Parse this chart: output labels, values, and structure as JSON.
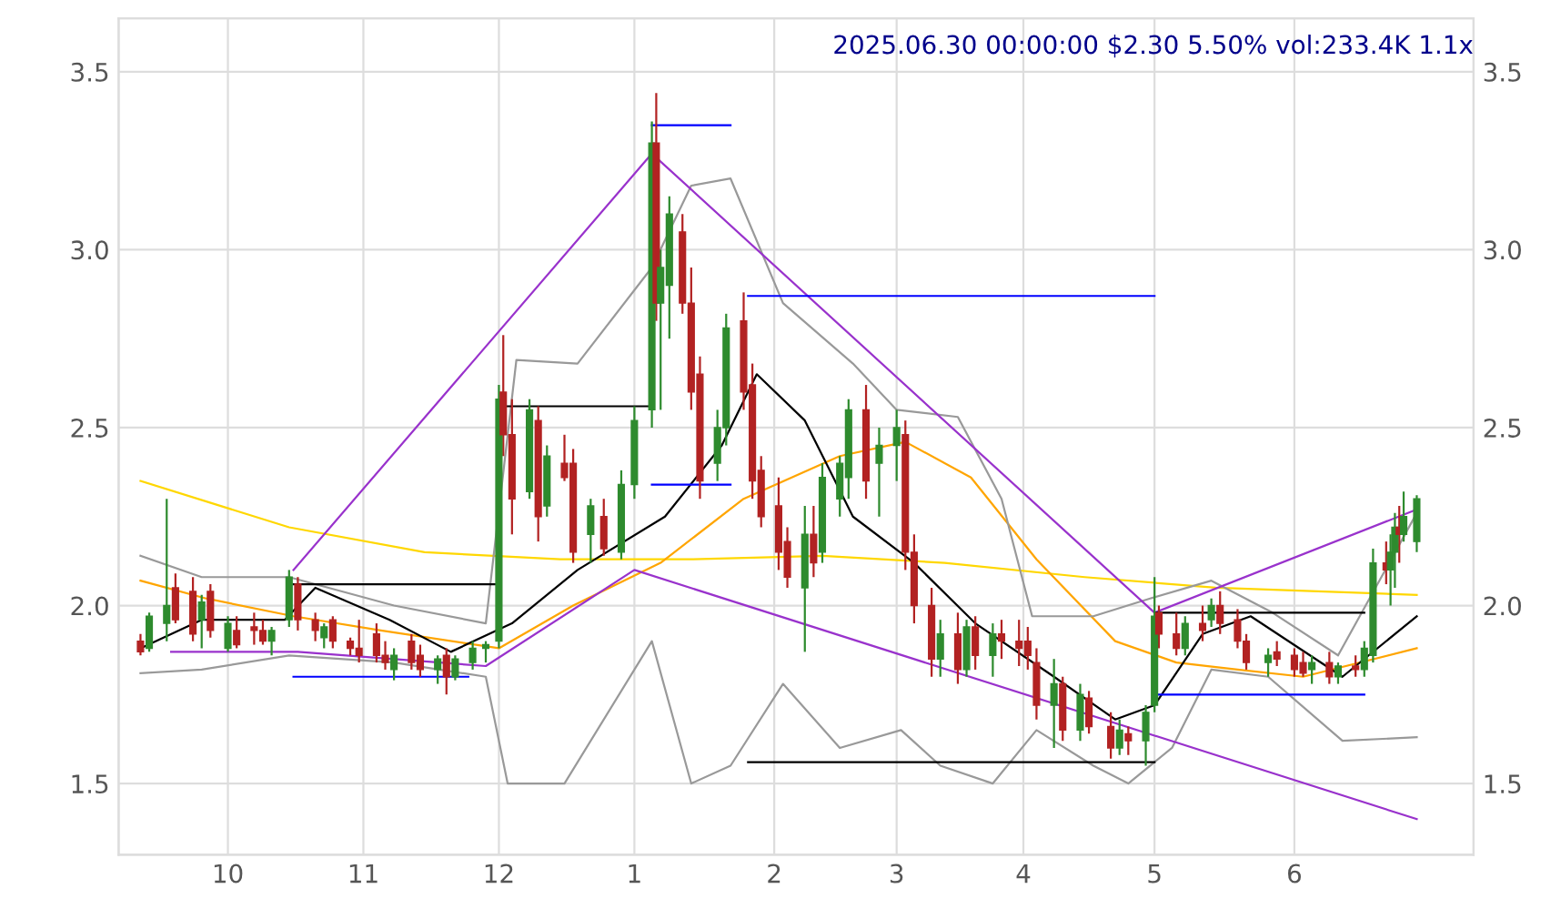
{
  "chart_data": {
    "type": "candlestick",
    "title": "2025.06.30 00:00:00 $2.30 5.50% vol:233.4K 1.1x",
    "xlim": [
      "2024-09-06",
      "2025-07-13"
    ],
    "ylim": [
      1.3,
      3.65
    ],
    "yticks": [
      {
        "value": 1.5,
        "label": "1.5"
      },
      {
        "value": 2,
        "label": "2.0"
      },
      {
        "value": 2.5,
        "label": "2.5"
      },
      {
        "value": 3,
        "label": "3.0"
      },
      {
        "value": 3.5,
        "label": "3.5"
      }
    ],
    "y2lim": [
      1.3,
      3.65
    ],
    "y2ticks": [
      {
        "value": 1.5,
        "label": "1.5"
      },
      {
        "value": 2,
        "label": "2.0"
      },
      {
        "value": 2.5,
        "label": "2.5"
      },
      {
        "value": 3,
        "label": "3.0"
      },
      {
        "value": 3.5,
        "label": "3.5"
      }
    ],
    "xticks": [
      {
        "value": "2024-10-01",
        "label": "10"
      },
      {
        "value": "2024-11-01",
        "label": "11"
      },
      {
        "value": "2024-12-02",
        "label": "12"
      },
      {
        "value": "2025-01-02",
        "label": "1"
      },
      {
        "value": "2025-02-03",
        "label": "2"
      },
      {
        "value": "2025-03-03",
        "label": "3"
      },
      {
        "value": "2025-04-01",
        "label": "4"
      },
      {
        "value": "2025-05-01",
        "label": "5"
      },
      {
        "value": "2025-06-02",
        "label": "6"
      }
    ],
    "grid": true,
    "series": [
      {
        "type": "line",
        "color": "#ffd700",
        "x": [
          "2024-09-11",
          "2024-10-15",
          "2024-11-15",
          "2024-12-16",
          "2025-01-15",
          "2025-02-14",
          "2025-03-14",
          "2025-04-15",
          "2025-05-15",
          "2025-06-30"
        ],
        "values": [
          2.35,
          2.22,
          2.15,
          2.13,
          2.13,
          2.14,
          2.12,
          2.08,
          2.05,
          2.03
        ]
      },
      {
        "type": "line",
        "color": "#ffa500",
        "x": [
          "2024-09-11",
          "2024-09-26",
          "2024-10-16",
          "2024-11-05",
          "2024-12-02",
          "2024-12-19",
          "2025-01-08",
          "2025-01-27",
          "2025-02-18",
          "2025-03-05",
          "2025-03-20",
          "2025-04-04",
          "2025-04-22",
          "2025-05-06",
          "2025-05-20",
          "2025-06-04",
          "2025-06-30"
        ],
        "values": [
          2.07,
          2.02,
          1.97,
          1.93,
          1.88,
          2.0,
          2.12,
          2.3,
          2.42,
          2.46,
          2.36,
          2.13,
          1.9,
          1.84,
          1.82,
          1.8,
          1.88
        ]
      },
      {
        "type": "line",
        "color": "#000000",
        "x": [
          "2024-09-11",
          "2024-09-25",
          "2024-10-14",
          "2024-10-21",
          "2024-11-07",
          "2024-11-21",
          "2024-12-05",
          "2024-12-20",
          "2025-01-09",
          "2025-01-22",
          "2025-01-30",
          "2025-02-10",
          "2025-02-21",
          "2025-03-07",
          "2025-03-21",
          "2025-04-08",
          "2025-04-22",
          "2025-05-01",
          "2025-05-12",
          "2025-05-23",
          "2025-06-13",
          "2025-06-30"
        ],
        "values": [
          1.88,
          1.96,
          1.96,
          2.05,
          1.96,
          1.87,
          1.95,
          2.1,
          2.25,
          2.45,
          2.65,
          2.52,
          2.25,
          2.12,
          1.95,
          1.8,
          1.68,
          1.72,
          1.92,
          1.97,
          1.8,
          1.97
        ]
      },
      {
        "type": "line",
        "color": "#999999",
        "x": [
          "2024-09-11",
          "2024-09-25",
          "2024-10-15",
          "2024-11-08",
          "2024-11-29",
          "2024-12-06",
          "2024-12-20",
          "2025-01-06",
          "2025-01-15",
          "2025-01-24",
          "2025-02-05",
          "2025-02-21",
          "2025-03-03",
          "2025-03-17",
          "2025-03-27",
          "2025-04-03",
          "2025-04-17",
          "2025-04-30",
          "2025-05-14",
          "2025-05-28",
          "2025-06-12",
          "2025-06-30"
        ],
        "values": [
          2.14,
          2.08,
          2.08,
          2.0,
          1.95,
          2.69,
          2.68,
          2.95,
          3.18,
          3.2,
          2.85,
          2.68,
          2.55,
          2.53,
          2.3,
          1.97,
          1.97,
          2.02,
          2.07,
          1.98,
          1.86,
          2.26
        ]
      },
      {
        "type": "line",
        "color": "#999999",
        "x": [
          "2024-09-11",
          "2024-09-25",
          "2024-10-15",
          "2024-11-08",
          "2024-11-29",
          "2024-12-04",
          "2024-12-17",
          "2025-01-06",
          "2025-01-15",
          "2025-01-24",
          "2025-02-05",
          "2025-02-18",
          "2025-03-04",
          "2025-03-13",
          "2025-03-25",
          "2025-04-04",
          "2025-04-17",
          "2025-04-25",
          "2025-05-05",
          "2025-05-14",
          "2025-05-27",
          "2025-06-13",
          "2025-06-30"
        ],
        "values": [
          1.81,
          1.82,
          1.86,
          1.84,
          1.8,
          1.5,
          1.5,
          1.9,
          1.5,
          1.55,
          1.78,
          1.6,
          1.65,
          1.55,
          1.5,
          1.65,
          1.55,
          1.5,
          1.6,
          1.82,
          1.8,
          1.62,
          1.63
        ]
      },
      {
        "type": "line",
        "color": "#9932cc",
        "x": [
          "2024-10-16",
          "2025-01-06",
          "2025-05-01",
          "2025-06-30"
        ],
        "values": [
          2.1,
          3.27,
          1.98,
          2.27
        ]
      },
      {
        "type": "line",
        "color": "#9932cc",
        "x": [
          "2024-09-18",
          "2024-10-17",
          "2024-11-29",
          "2025-01-02",
          "2025-06-30"
        ],
        "values": [
          1.87,
          1.87,
          1.83,
          2.1,
          1.4
        ]
      },
      {
        "type": "line",
        "color": "#0000ff",
        "x": [
          "2025-01-06",
          "2025-01-24"
        ],
        "values": [
          3.35,
          3.35
        ]
      },
      {
        "type": "line",
        "color": "#0000ff",
        "x": [
          "2025-01-06",
          "2025-01-24"
        ],
        "values": [
          2.34,
          2.34
        ]
      },
      {
        "type": "line",
        "color": "#0000ff",
        "x": [
          "2025-01-28",
          "2025-05-01"
        ],
        "values": [
          2.87,
          2.87
        ]
      },
      {
        "type": "line",
        "color": "#0000ff",
        "x": [
          "2024-10-16",
          "2024-11-25"
        ],
        "values": [
          1.8,
          1.8
        ]
      },
      {
        "type": "line",
        "color": "#0000ff",
        "x": [
          "2025-05-01",
          "2025-06-18"
        ],
        "values": [
          1.75,
          1.75
        ]
      },
      {
        "type": "line",
        "color": "#000000",
        "x": [
          "2024-10-16",
          "2024-12-02"
        ],
        "values": [
          2.06,
          2.06
        ]
      },
      {
        "type": "line",
        "color": "#000000",
        "x": [
          "2024-12-04",
          "2025-01-06"
        ],
        "values": [
          2.56,
          2.56
        ]
      },
      {
        "type": "line",
        "color": "#000000",
        "x": [
          "2025-01-28",
          "2025-05-01"
        ],
        "values": [
          1.56,
          1.56
        ]
      },
      {
        "type": "line",
        "color": "#000000",
        "x": [
          "2025-05-01",
          "2025-06-18"
        ],
        "values": [
          1.98,
          1.98
        ]
      },
      {
        "x": [
          "2024-09-11",
          "2024-09-13",
          "2024-09-17",
          "2024-09-19",
          "2024-09-23",
          "2024-09-25",
          "2024-09-27",
          "2024-10-01",
          "2024-10-03",
          "2024-10-07",
          "2024-10-09",
          "2024-10-11",
          "2024-10-15",
          "2024-10-17",
          "2024-10-21",
          "2024-10-23",
          "2024-10-25",
          "2024-10-29",
          "2024-10-31",
          "2024-11-04",
          "2024-11-06",
          "2024-11-08",
          "2024-11-12",
          "2024-11-14",
          "2024-11-18",
          "2024-11-20",
          "2024-11-22",
          "2024-11-26",
          "2024-11-29",
          "2024-12-02",
          "2024-12-03",
          "2024-12-05",
          "2024-12-09",
          "2024-12-11",
          "2024-12-13",
          "2024-12-17",
          "2024-12-19",
          "2024-12-23",
          "2024-12-26",
          "2024-12-30",
          "2025-01-02",
          "2025-01-06",
          "2025-01-07",
          "2025-01-08",
          "2025-01-10",
          "2025-01-13",
          "2025-01-15",
          "2025-01-17",
          "2025-01-21",
          "2025-01-23",
          "2025-01-27",
          "2025-01-29",
          "2025-01-31",
          "2025-02-04",
          "2025-02-06",
          "2025-02-10",
          "2025-02-12",
          "2025-02-14",
          "2025-02-18",
          "2025-02-20",
          "2025-02-24",
          "2025-02-27",
          "2025-03-03",
          "2025-03-05",
          "2025-03-07",
          "2025-03-11",
          "2025-03-13",
          "2025-03-17",
          "2025-03-19",
          "2025-03-21",
          "2025-03-25",
          "2025-03-27",
          "2025-03-31",
          "2025-04-02",
          "2025-04-04",
          "2025-04-08",
          "2025-04-10",
          "2025-04-14",
          "2025-04-16",
          "2025-04-21",
          "2025-04-23",
          "2025-04-25",
          "2025-04-29",
          "2025-05-01",
          "2025-05-02",
          "2025-05-06",
          "2025-05-08",
          "2025-05-12",
          "2025-05-14",
          "2025-05-16",
          "2025-05-20",
          "2025-05-22",
          "2025-05-27",
          "2025-05-29",
          "2025-06-02",
          "2025-06-04",
          "2025-06-06",
          "2025-06-10",
          "2025-06-12",
          "2025-06-16",
          "2025-06-18",
          "2025-06-20",
          "2025-06-23",
          "2025-06-24",
          "2025-06-25",
          "2025-06-26",
          "2025-06-27",
          "2025-06-30"
        ],
        "ohlc": [
          [
            1.9,
            1.92,
            1.86,
            1.87
          ],
          [
            1.88,
            1.98,
            1.87,
            1.97
          ],
          [
            1.95,
            2.3,
            1.9,
            2.0
          ],
          [
            2.05,
            2.09,
            1.95,
            1.96
          ],
          [
            2.04,
            2.08,
            1.9,
            1.92
          ],
          [
            1.96,
            2.03,
            1.88,
            2.01
          ],
          [
            2.04,
            2.06,
            1.91,
            1.93
          ],
          [
            1.88,
            1.97,
            1.87,
            1.95
          ],
          [
            1.93,
            1.97,
            1.88,
            1.89
          ],
          [
            1.94,
            1.98,
            1.89,
            1.93
          ],
          [
            1.93,
            1.96,
            1.89,
            1.9
          ],
          [
            1.9,
            1.94,
            1.86,
            1.93
          ],
          [
            1.96,
            2.1,
            1.94,
            2.08
          ],
          [
            2.06,
            2.08,
            1.93,
            1.96
          ],
          [
            1.96,
            1.98,
            1.9,
            1.93
          ],
          [
            1.91,
            1.95,
            1.88,
            1.94
          ],
          [
            1.96,
            1.97,
            1.88,
            1.9
          ],
          [
            1.9,
            1.91,
            1.86,
            1.88
          ],
          [
            1.88,
            1.96,
            1.84,
            1.86
          ],
          [
            1.92,
            1.95,
            1.84,
            1.86
          ],
          [
            1.86,
            1.9,
            1.82,
            1.84
          ],
          [
            1.82,
            1.88,
            1.79,
            1.86
          ],
          [
            1.9,
            1.92,
            1.82,
            1.84
          ],
          [
            1.86,
            1.89,
            1.8,
            1.82
          ],
          [
            1.82,
            1.86,
            1.78,
            1.85
          ],
          [
            1.86,
            1.88,
            1.75,
            1.8
          ],
          [
            1.8,
            1.86,
            1.79,
            1.85
          ],
          [
            1.84,
            1.9,
            1.82,
            1.88
          ],
          [
            1.88,
            1.9,
            1.84,
            1.89
          ],
          [
            1.9,
            2.62,
            1.88,
            2.58
          ],
          [
            2.6,
            2.76,
            2.42,
            2.48
          ],
          [
            2.48,
            2.58,
            2.2,
            2.3
          ],
          [
            2.32,
            2.58,
            2.3,
            2.55
          ],
          [
            2.52,
            2.56,
            2.18,
            2.25
          ],
          [
            2.28,
            2.45,
            2.25,
            2.42
          ],
          [
            2.4,
            2.48,
            2.35,
            2.36
          ],
          [
            2.4,
            2.44,
            2.12,
            2.15
          ],
          [
            2.2,
            2.3,
            2.12,
            2.28
          ],
          [
            2.25,
            2.3,
            2.14,
            2.16
          ],
          [
            2.15,
            2.38,
            2.13,
            2.34
          ],
          [
            2.34,
            2.56,
            2.3,
            2.52
          ],
          [
            2.55,
            3.36,
            2.5,
            3.3
          ],
          [
            3.3,
            3.44,
            2.8,
            2.85
          ],
          [
            2.85,
            3.0,
            2.55,
            2.95
          ],
          [
            2.9,
            3.15,
            2.75,
            3.1
          ],
          [
            3.05,
            3.1,
            2.82,
            2.85
          ],
          [
            2.85,
            2.95,
            2.55,
            2.6
          ],
          [
            2.65,
            2.7,
            2.3,
            2.35
          ],
          [
            2.4,
            2.55,
            2.35,
            2.5
          ],
          [
            2.5,
            2.82,
            2.45,
            2.78
          ],
          [
            2.8,
            2.88,
            2.55,
            2.6
          ],
          [
            2.62,
            2.68,
            2.3,
            2.35
          ],
          [
            2.38,
            2.42,
            2.22,
            2.25
          ],
          [
            2.28,
            2.36,
            2.1,
            2.15
          ],
          [
            2.18,
            2.22,
            2.05,
            2.08
          ],
          [
            2.05,
            2.28,
            1.87,
            2.2
          ],
          [
            2.2,
            2.28,
            2.08,
            2.12
          ],
          [
            2.15,
            2.4,
            2.12,
            2.36
          ],
          [
            2.3,
            2.42,
            2.25,
            2.4
          ],
          [
            2.36,
            2.58,
            2.3,
            2.55
          ],
          [
            2.55,
            2.62,
            2.3,
            2.35
          ],
          [
            2.4,
            2.5,
            2.25,
            2.45
          ],
          [
            2.45,
            2.55,
            2.35,
            2.5
          ],
          [
            2.48,
            2.52,
            2.1,
            2.15
          ],
          [
            2.15,
            2.2,
            1.95,
            2.0
          ],
          [
            2.0,
            2.05,
            1.8,
            1.85
          ],
          [
            1.85,
            1.96,
            1.8,
            1.92
          ],
          [
            1.92,
            1.98,
            1.78,
            1.82
          ],
          [
            1.82,
            1.96,
            1.8,
            1.94
          ],
          [
            1.94,
            1.97,
            1.82,
            1.86
          ],
          [
            1.86,
            1.95,
            1.8,
            1.92
          ],
          [
            1.92,
            1.96,
            1.85,
            1.9
          ],
          [
            1.9,
            1.96,
            1.83,
            1.88
          ],
          [
            1.9,
            1.94,
            1.82,
            1.86
          ],
          [
            1.84,
            1.88,
            1.68,
            1.72
          ],
          [
            1.72,
            1.85,
            1.6,
            1.78
          ],
          [
            1.78,
            1.8,
            1.62,
            1.65
          ],
          [
            1.65,
            1.78,
            1.62,
            1.75
          ],
          [
            1.74,
            1.76,
            1.64,
            1.66
          ],
          [
            1.66,
            1.7,
            1.57,
            1.6
          ],
          [
            1.6,
            1.68,
            1.58,
            1.65
          ],
          [
            1.64,
            1.66,
            1.58,
            1.62
          ],
          [
            1.62,
            1.72,
            1.55,
            1.7
          ],
          [
            1.72,
            2.08,
            1.7,
            1.97
          ],
          [
            1.98,
            2.0,
            1.88,
            1.92
          ],
          [
            1.92,
            1.98,
            1.86,
            1.88
          ],
          [
            1.88,
            1.97,
            1.86,
            1.95
          ],
          [
            1.95,
            2.0,
            1.9,
            1.93
          ],
          [
            1.96,
            2.02,
            1.94,
            2.0
          ],
          [
            2.0,
            2.04,
            1.92,
            1.95
          ],
          [
            1.96,
            1.99,
            1.88,
            1.9
          ],
          [
            1.9,
            1.92,
            1.82,
            1.84
          ],
          [
            1.84,
            1.88,
            1.8,
            1.86
          ],
          [
            1.87,
            1.9,
            1.83,
            1.85
          ],
          [
            1.86,
            1.88,
            1.8,
            1.82
          ],
          [
            1.84,
            1.87,
            1.8,
            1.81
          ],
          [
            1.82,
            1.86,
            1.78,
            1.84
          ],
          [
            1.84,
            1.87,
            1.78,
            1.8
          ],
          [
            1.8,
            1.84,
            1.78,
            1.83
          ],
          [
            1.83,
            1.86,
            1.8,
            1.82
          ],
          [
            1.82,
            1.9,
            1.8,
            1.88
          ],
          [
            1.86,
            2.16,
            1.84,
            2.12
          ],
          [
            2.12,
            2.18,
            2.06,
            2.1
          ],
          [
            2.1,
            2.2,
            2.0,
            2.15
          ],
          [
            2.15,
            2.26,
            2.05,
            2.22
          ],
          [
            2.22,
            2.28,
            2.12,
            2.2
          ],
          [
            2.2,
            2.32,
            2.18,
            2.25
          ],
          [
            2.18,
            2.31,
            2.15,
            2.3
          ]
        ]
      }
    ]
  }
}
